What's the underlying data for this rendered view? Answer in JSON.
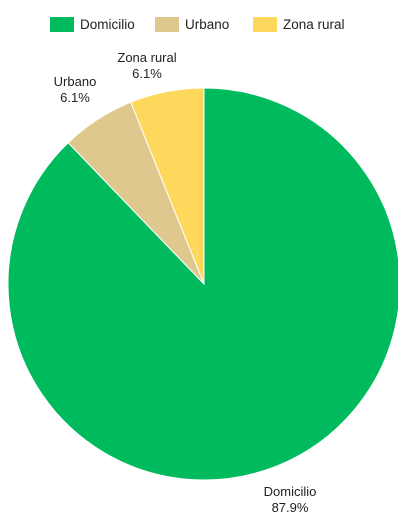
{
  "chart_data": {
    "type": "pie",
    "legend_position": "top",
    "slices": [
      {
        "label": "Domicilio",
        "value": 87.9,
        "value_label": "87.9%",
        "color": "#00bb5e"
      },
      {
        "label": "Urbano",
        "value": 6.1,
        "value_label": "6.1%",
        "color": "#dec88d"
      },
      {
        "label": "Zona rural",
        "value": 6.1,
        "value_label": "6.1%",
        "color": "#fdd85d"
      }
    ]
  }
}
